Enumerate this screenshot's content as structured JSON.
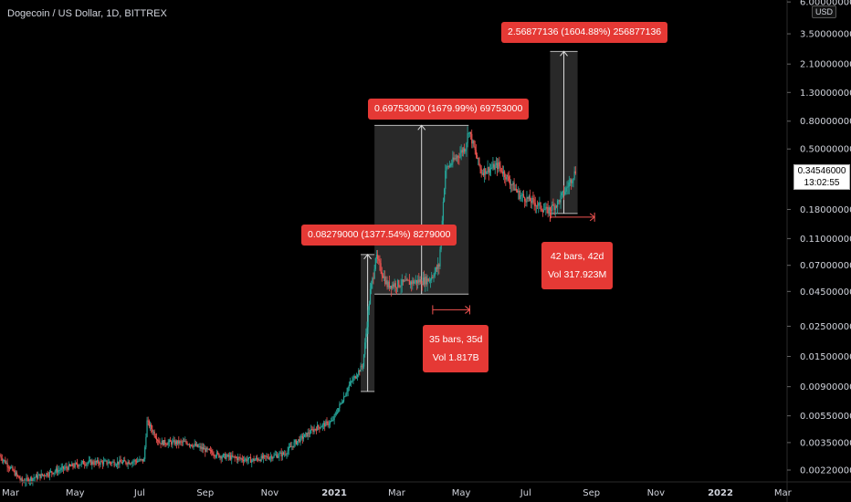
{
  "title": "Dogecoin / US Dollar, 1D, BITTREX",
  "currency": "USD",
  "current_price": "0.34546000",
  "countdown": "13:02:55",
  "colors": {
    "up": "#26a69a",
    "down": "#ef5350",
    "label_bg": "#e53935",
    "box": "#5a5a5a"
  },
  "measurements": {
    "m1": "0.08279000 (1377.54%) 8279000",
    "m2": "0.69753000 (1679.99%) 69753000",
    "m3": "2.56877136 (1604.88%) 256877136",
    "r1_bars": "35 bars, 35d",
    "r1_vol": "Vol 1.817B",
    "r2_bars": "42 bars, 42d",
    "r2_vol": "Vol 317.923M"
  },
  "chart_data": {
    "type": "candlestick",
    "scale": "log",
    "y_ticks": [
      "6.00000000",
      "3.50000000",
      "2.10000000",
      "1.30000000",
      "0.80000000",
      "0.50000000",
      "0.18000000",
      "0.11000000",
      "0.07000000",
      "0.04500000",
      "0.02500000",
      "0.01500000",
      "0.00900000",
      "0.00550000",
      "0.00350000",
      "0.00220000"
    ],
    "x_ticks": [
      "Mar",
      "May",
      "Jul",
      "Sep",
      "Nov",
      "2021",
      "Mar",
      "May",
      "Jul",
      "Sep",
      "Nov",
      "2022",
      "Mar"
    ],
    "bold_x_ticks": [
      "2021",
      "2022"
    ],
    "ylim": [
      0.0018,
      6.2
    ],
    "xlim": [
      "2020-02-20",
      "2022-03-05"
    ],
    "price_path": [
      [
        "2020-02-20",
        0.0028
      ],
      [
        "2020-03-12",
        0.0018
      ],
      [
        "2020-03-20",
        0.0019
      ],
      [
        "2020-04-15",
        0.0022
      ],
      [
        "2020-05-10",
        0.0025
      ],
      [
        "2020-06-15",
        0.0025
      ],
      [
        "2020-07-05",
        0.0026
      ],
      [
        "2020-07-08",
        0.005
      ],
      [
        "2020-07-20",
        0.0035
      ],
      [
        "2020-08-15",
        0.0035
      ],
      [
        "2020-09-15",
        0.0028
      ],
      [
        "2020-10-15",
        0.0026
      ],
      [
        "2020-11-15",
        0.0029
      ],
      [
        "2020-11-25",
        0.0035
      ],
      [
        "2020-12-15",
        0.0045
      ],
      [
        "2020-12-30",
        0.005
      ],
      [
        "2021-01-15",
        0.0092
      ],
      [
        "2021-01-28",
        0.013
      ],
      [
        "2021-02-04",
        0.045
      ],
      [
        "2021-02-07",
        0.06
      ],
      [
        "2021-02-09",
        0.082
      ],
      [
        "2021-02-20",
        0.05
      ],
      [
        "2021-03-10",
        0.052
      ],
      [
        "2021-04-01",
        0.055
      ],
      [
        "2021-04-10",
        0.07
      ],
      [
        "2021-04-16",
        0.35
      ],
      [
        "2021-05-05",
        0.52
      ],
      [
        "2021-05-08",
        0.7
      ],
      [
        "2021-05-15",
        0.45
      ],
      [
        "2021-05-20",
        0.34
      ],
      [
        "2021-06-05",
        0.38
      ],
      [
        "2021-06-25",
        0.23
      ],
      [
        "2021-07-10",
        0.2
      ],
      [
        "2021-07-21",
        0.175
      ],
      [
        "2021-07-31",
        0.2
      ],
      [
        "2021-08-10",
        0.27
      ],
      [
        "2021-08-17",
        0.345
      ]
    ],
    "measures": [
      {
        "from": "2021-01-26",
        "to": "2021-02-08",
        "low": 0.0083,
        "high": 0.084
      },
      {
        "from": "2021-02-08",
        "to": "2021-05-08",
        "low": 0.043,
        "high": 0.745
      },
      {
        "from": "2021-07-24",
        "to": "2021-08-19",
        "low": 0.168,
        "high": 2.6
      }
    ],
    "date_ranges": [
      {
        "from": "2021-04-04",
        "to": "2021-05-09",
        "y": 0.033
      },
      {
        "from": "2021-07-24",
        "to": "2021-09-04",
        "y": 0.158
      }
    ]
  }
}
